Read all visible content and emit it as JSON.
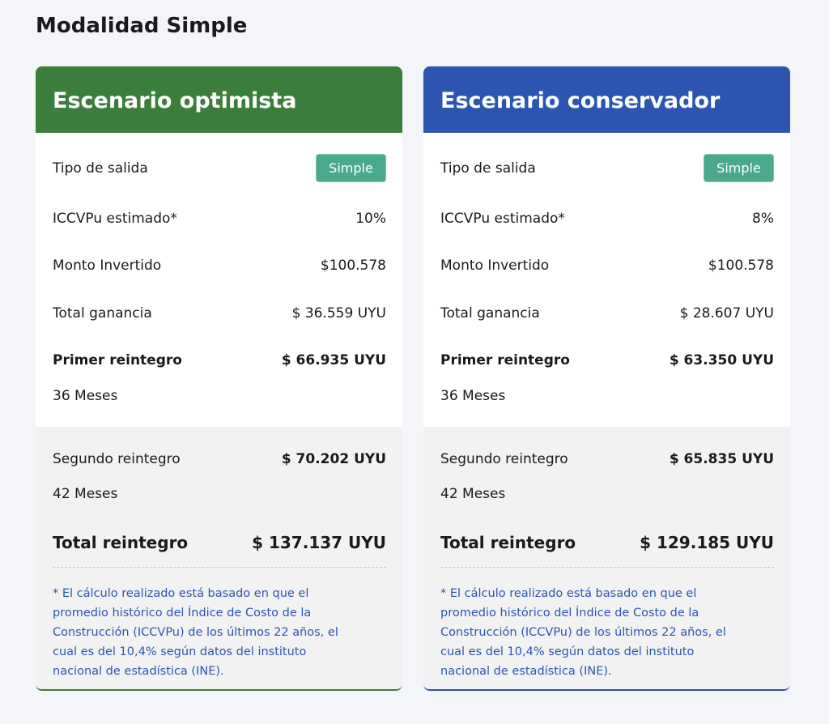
{
  "title": "Modalidad Simple",
  "cards": [
    {
      "header": "Escenario optimista",
      "color": "#3b7d3b",
      "rows": [
        {
          "label": "Tipo de salida",
          "badge": "Simple"
        },
        {
          "label": "ICCVPu estimado*",
          "value": "10%"
        },
        {
          "label": "Monto Invertido",
          "value": "$100.578"
        },
        {
          "label": "Total ganancia",
          "value": "$ 36.559 UYU"
        },
        {
          "label": "Primer reintegro",
          "value": "$ 66.935 UYU",
          "sub": "36 Meses"
        }
      ],
      "extra": {
        "label": "Segundo reintegro",
        "value": "$ 70.202 UYU",
        "sub": "42 Meses"
      },
      "total": {
        "label": "Total reintegro",
        "value": "$ 137.137 UYU"
      },
      "note": [
        "* El cálculo realizado está basado en que el",
        "promedio histórico del Índice de Costo de la",
        "Construcción (ICCVPu) de los últimos 22 años, el",
        "cual es del 10,4% según datos del instituto",
        "nacional de estadística (INE)."
      ]
    },
    {
      "header": "Escenario conservador",
      "color": "#2b55b0",
      "rows": [
        {
          "label": "Tipo de salida",
          "badge": "Simple"
        },
        {
          "label": "ICCVPu estimado*",
          "value": "8%"
        },
        {
          "label": "Monto Invertido",
          "value": "$100.578"
        },
        {
          "label": "Total ganancia",
          "value": "$ 28.607 UYU"
        },
        {
          "label": "Primer reintegro",
          "value": "$ 63.350 UYU",
          "sub": "36 Meses"
        }
      ],
      "extra": {
        "label": "Segundo reintegro",
        "value": "$ 65.835 UYU",
        "sub": "42 Meses"
      },
      "total": {
        "label": "Total reintegro",
        "value": "$ 129.185 UYU"
      },
      "note": [
        "* El cálculo realizado está basado en que el",
        "promedio histórico del Índice de Costo de la",
        "Construcción (ICCVPu) de los últimos 22 años, el",
        "cual es del 10,4% según datos del instituto",
        "nacional de estadística (INE)."
      ]
    }
  ]
}
